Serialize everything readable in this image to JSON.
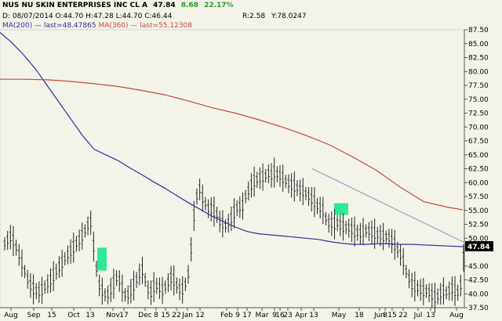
{
  "header": {
    "symbol_name": "NUS NU SKIN ENTERPRISES INC CL A",
    "last": "47.84",
    "change": "8.68",
    "change_pct": "22.17%",
    "ohlc": "D: 08/07/2014 O:44.70 H:47.28 L:44.70 C:46.44",
    "r_stat": "R:2.58",
    "y_stat": "Y:78.0247",
    "ma200_label": "MA(200) — last=48.47865",
    "ma360_label": "MA(360) — last=55.12308"
  },
  "last_price_tag": "47.84",
  "colors": {
    "background": "#f4f3ea",
    "ma200": "#2f2f9c",
    "ma360": "#c04a3c",
    "bars": "#222222",
    "highlight": "#2ee896",
    "trendline": "#8d93c4",
    "last_tag": "#000000"
  },
  "chart_data": {
    "type": "line",
    "title": "",
    "ylim": [
      37.5,
      87.5
    ],
    "y_ticks": [
      "87.50",
      "85.00",
      "82.50",
      "80.00",
      "77.50",
      "75.00",
      "72.50",
      "70.00",
      "67.50",
      "65.00",
      "62.50",
      "60.00",
      "57.50",
      "55.00",
      "52.50",
      "50.00",
      "47.84",
      "45.00",
      "42.50",
      "40.00",
      "37.50"
    ],
    "x_tick_labels": [
      "Aug",
      "Sep",
      "15",
      "Oct",
      "13",
      "Nov",
      "17",
      "Dec",
      "8",
      "15",
      "22",
      "Jan",
      "12",
      "Feb",
      "9",
      "17",
      "Mar",
      "9",
      "16",
      "23",
      "Apr",
      "13",
      "May",
      "18",
      "Jun",
      "8",
      "15",
      "22",
      "Jul",
      "13",
      "Aug"
    ],
    "series": [
      {
        "name": "MA(200)",
        "x": [
          0,
          15,
          30,
          45,
          60,
          75,
          90,
          105,
          120,
          135,
          150,
          165,
          180,
          195,
          210,
          225,
          240,
          255,
          270,
          285,
          300,
          315,
          330,
          345,
          360,
          375,
          390,
          405,
          420,
          435,
          450,
          465,
          480,
          495,
          510,
          525,
          540,
          555,
          570,
          590
        ],
        "y": [
          87.0,
          85.2,
          83.0,
          80.5,
          77.5,
          74.5,
          71.5,
          68.5,
          66.0,
          65.0,
          64.0,
          62.7,
          61.5,
          60.2,
          59.0,
          57.7,
          56.4,
          55.2,
          54.0,
          53.0,
          52.0,
          51.2,
          50.8,
          50.6,
          50.4,
          50.2,
          50.0,
          49.8,
          49.4,
          49.1,
          48.9,
          48.9,
          49.0,
          49.0,
          48.9,
          48.9,
          48.8,
          48.7,
          48.6,
          48.48
        ]
      },
      {
        "name": "MA(360)",
        "x": [
          0,
          30,
          60,
          90,
          120,
          150,
          180,
          210,
          240,
          270,
          300,
          330,
          360,
          390,
          420,
          450,
          480,
          510,
          540,
          570,
          590
        ],
        "y": [
          78.6,
          78.6,
          78.5,
          78.2,
          77.8,
          77.3,
          76.6,
          75.8,
          74.7,
          73.5,
          72.5,
          71.3,
          70.0,
          68.5,
          66.8,
          64.6,
          62.2,
          59.2,
          56.6,
          55.6,
          55.1
        ]
      }
    ],
    "price_bars": [
      49,
      49.6,
      50.2,
      49.5,
      48.3,
      47,
      45.5,
      44,
      42.6,
      41.5,
      40.8,
      40.5,
      40.3,
      40.6,
      41.2,
      41.8,
      42.4,
      43.2,
      44,
      44.8,
      45.5,
      46.3,
      47,
      47.6,
      48.3,
      49,
      49.6,
      50.4,
      51.3,
      52.2,
      52.8,
      48.5,
      44.5,
      41.5,
      40.5,
      39.8,
      39.8,
      40.7,
      41.8,
      42.8,
      42.3,
      41,
      39.8,
      39.8,
      40.5,
      41.5,
      42.5,
      43.5,
      44.2,
      42.5,
      40.7,
      40.2,
      41.2,
      41.4,
      41,
      40.6,
      41.2,
      42,
      42.8,
      42.4,
      41.5,
      40.8,
      40.7,
      41.7,
      43.5,
      48,
      54,
      57.5,
      58.8,
      57.2,
      56.2,
      55.3,
      55.2,
      54.8,
      54.2,
      53,
      52.6,
      52.2,
      52.7,
      53.5,
      54.5,
      55.4,
      55.6,
      55.8,
      57.5,
      58.5,
      59.5,
      60.2,
      60.5,
      60.8,
      61,
      61.2,
      61.6,
      61.3,
      61.8,
      61.5,
      61.2,
      60.8,
      60.2,
      59.8,
      59.5,
      59.3,
      59,
      58.6,
      58.4,
      58,
      57.5,
      57,
      56.5,
      55.8,
      55.5,
      55,
      53.5,
      52.7,
      52.6,
      52.5,
      52.7,
      52.3,
      52,
      51.9,
      51.8,
      51.5,
      51.2,
      51,
      50.8,
      51.2,
      51.3,
      51.2,
      51,
      50.8,
      50.6,
      50.5,
      50.3,
      50.2,
      50,
      49.5,
      48.8,
      47.9,
      47,
      45.8,
      44,
      42.7,
      41.6,
      41.3,
      41,
      40.7,
      40.4,
      40.5,
      40.2,
      39.7,
      39.3,
      39.5,
      40,
      40.5,
      40.2,
      40.5,
      40.9,
      40.5,
      40.2,
      41.5,
      46.44
    ],
    "trendline": {
      "x": [
        398,
        610
      ],
      "y": [
        62.5,
        48.0
      ]
    },
    "annotation_boxes": [
      {
        "x0": 124,
        "x1": 136,
        "y_top": 48.3,
        "y_bottom": 44.2
      },
      {
        "x0": 426,
        "x1": 444,
        "y_top": 56.3,
        "y_bottom": 54.2
      }
    ],
    "last_value": 46.44
  }
}
